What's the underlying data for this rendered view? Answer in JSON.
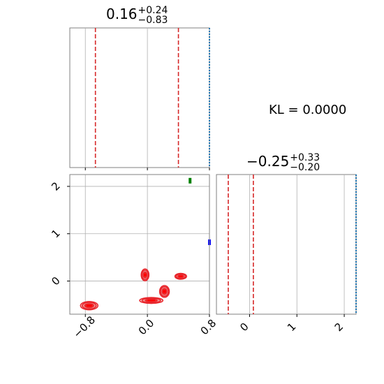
{
  "chart_data": {
    "type": "scatter",
    "kl_label": "KL = 0.0000",
    "panels": {
      "marg_x": {
        "title": {
          "value": "0.16",
          "plus": "+0.24",
          "minus": "−0.83"
        },
        "xlim": [
          -1.0,
          0.8
        ],
        "quantile_lines": [
          -0.67,
          0.4
        ],
        "grid_x": [
          -0.8,
          0.0,
          0.8
        ]
      },
      "marg_y": {
        "title": {
          "value": "−0.25",
          "plus": "+0.33",
          "minus": "−0.20"
        },
        "xlim": [
          -0.7,
          2.25
        ],
        "quantile_lines": [
          -0.45,
          0.08
        ],
        "grid_x": [
          0,
          1,
          2
        ]
      },
      "joint": {
        "xlim": [
          -1.0,
          0.8
        ],
        "ylim": [
          -0.7,
          2.25
        ],
        "x_ticks": [
          "−0.8",
          "0.0",
          "0.8"
        ],
        "x_tick_values": [
          -0.8,
          0.0,
          0.8
        ],
        "y_ticks": [
          "0",
          "1",
          "2"
        ],
        "y_tick_values": [
          0,
          1,
          2
        ],
        "clusters": [
          {
            "x": -0.75,
            "y": -0.52,
            "rx": 0.09,
            "ry": 0.07
          },
          {
            "x": -0.03,
            "y": 0.13,
            "rx": 0.04,
            "ry": 0.1
          },
          {
            "x": 0.05,
            "y": -0.41,
            "rx": 0.12,
            "ry": 0.05
          },
          {
            "x": 0.22,
            "y": -0.22,
            "rx": 0.05,
            "ry": 0.1
          },
          {
            "x": 0.43,
            "y": 0.1,
            "rx": 0.06,
            "ry": 0.05
          }
        ],
        "markers": [
          {
            "x": 0.55,
            "y": 2.12,
            "color": "#008000"
          },
          {
            "x": 0.8,
            "y": 0.82,
            "color": "#0000ff"
          }
        ]
      }
    }
  },
  "colors": {
    "quantile": "#d62728",
    "contour": "#e8242a",
    "grid": "#b0b0b0",
    "truth": "#1f77b4"
  }
}
